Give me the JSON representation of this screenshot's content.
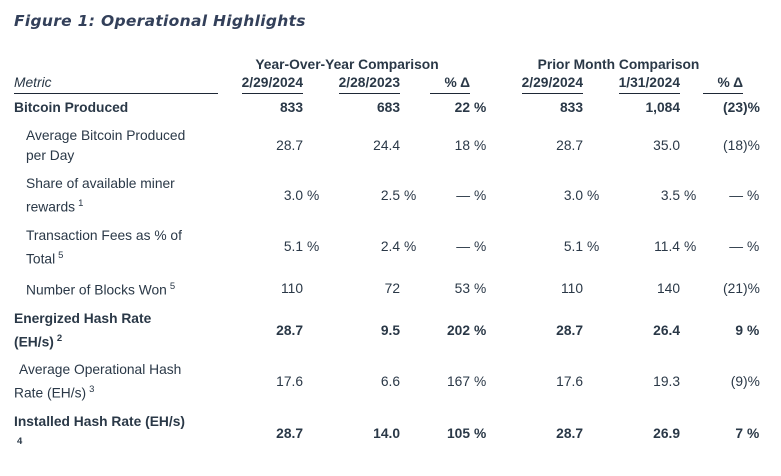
{
  "title": "Figure 1: Operational Highlights",
  "colors": {
    "text": "#2A3847",
    "title": "#33405A",
    "rule": "#1E2836",
    "background": "#FFFFFF"
  },
  "table": {
    "group_headers": [
      {
        "label": "Year-Over-Year Comparison"
      },
      {
        "label": "Prior Month Comparison"
      }
    ],
    "columns": {
      "metric_label": "Metric",
      "headers": [
        "2/29/2024",
        "2/28/2023",
        "% Δ",
        "2/29/2024",
        "1/31/2024",
        "% Δ"
      ]
    },
    "rows": [
      {
        "label": "Bitcoin Produced",
        "sup": "",
        "bold": true,
        "indent": "none",
        "sup_newline": false,
        "values": [
          "833",
          "683",
          "22%",
          "833",
          "1,084",
          "(23)%"
        ]
      },
      {
        "label": "Average Bitcoin Produced\nper Day",
        "sup": "",
        "bold": false,
        "indent": "sub",
        "sup_newline": false,
        "values": [
          "28.7",
          "24.4",
          "18%",
          "28.7",
          "35.0",
          "(18)%"
        ]
      },
      {
        "label": "Share of available miner\nrewards",
        "sup": "1",
        "bold": false,
        "indent": "sub",
        "sup_newline": false,
        "values": [
          "3.0%",
          "2.5%",
          "—%",
          "3.0%",
          "3.5%",
          "—%"
        ]
      },
      {
        "label": "Transaction Fees as % of\nTotal",
        "sup": "5",
        "bold": false,
        "indent": "sub",
        "sup_newline": false,
        "values": [
          "5.1%",
          "2.4%",
          "—%",
          "5.1%",
          "11.4%",
          "—%"
        ]
      },
      {
        "label": "Number of Blocks Won",
        "sup": "5",
        "bold": false,
        "indent": "sub",
        "sup_newline": false,
        "values": [
          "110",
          "72",
          "53%",
          "110",
          "140",
          "(21)%"
        ]
      },
      {
        "label": "Energized Hash Rate\n(EH/s)",
        "sup": "2",
        "bold": true,
        "indent": "none",
        "sup_newline": false,
        "values": [
          "28.7",
          "9.5",
          "202%",
          "28.7",
          "26.4",
          "9%"
        ]
      },
      {
        "label": "Average Operational Hash\nRate (EH/s)",
        "sup": "3",
        "bold": false,
        "indent": "first",
        "sup_newline": false,
        "values": [
          "17.6",
          "6.6",
          "167%",
          "17.6",
          "19.3",
          "(9)%"
        ]
      },
      {
        "label": "Installed Hash Rate (EH/s)",
        "sup": "4",
        "bold": true,
        "indent": "none",
        "sup_newline": true,
        "values": [
          "28.7",
          "14.0",
          "105%",
          "28.7",
          "26.9",
          "7%"
        ]
      }
    ]
  }
}
